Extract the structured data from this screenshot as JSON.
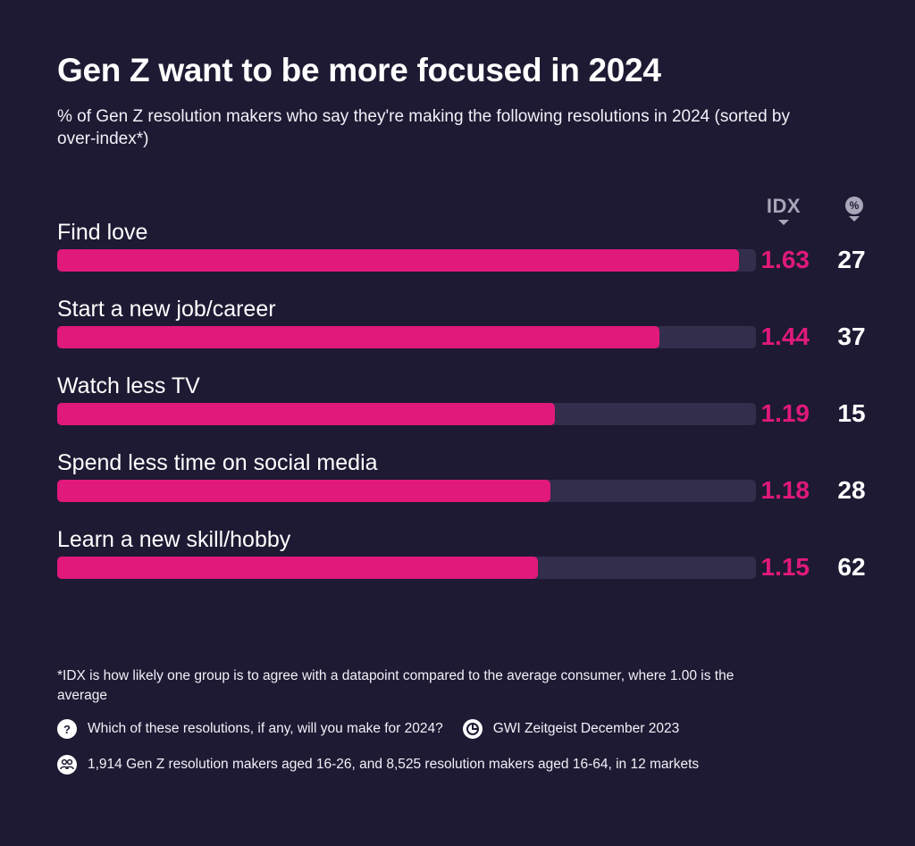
{
  "title": "Gen Z want to be more focused in 2024",
  "subtitle": "% of Gen Z resolution makers who say they're making the following resolutions in 2024 (sorted by over-index*)",
  "columns": {
    "idx": "IDX",
    "pct_icon": "%"
  },
  "colors": {
    "background": "#1e1a33",
    "bar": "#e0197b",
    "track": "#322e4c",
    "muted": "#a8a6b8"
  },
  "chart_data": {
    "type": "bar",
    "orientation": "horizontal",
    "categories": [
      "Find love",
      "Start a new job/career",
      "Watch less TV",
      "Spend less time on social media",
      "Learn a new skill/hobby"
    ],
    "series": [
      {
        "name": "IDX",
        "values": [
          1.63,
          1.44,
          1.19,
          1.18,
          1.15
        ],
        "labels": [
          "1.63",
          "1.44",
          "1.19",
          "1.18",
          "1.15"
        ]
      },
      {
        "name": "%",
        "values": [
          27,
          37,
          15,
          28,
          62
        ],
        "labels": [
          "27",
          "37",
          "15",
          "28",
          "62"
        ]
      }
    ],
    "xlim": [
      0,
      1.65
    ]
  },
  "footer": {
    "note": "*IDX is how likely one group is to agree with a datapoint compared to the average consumer, where 1.00 is the average",
    "question_icon": "?",
    "question": "Which of these resolutions, if any, will you make for 2024?",
    "source_icon": "gwi-logo-icon",
    "source": "GWI Zeitgeist December 2023",
    "sample_icon": "people-icon",
    "sample": "1,914 Gen Z resolution makers aged 16-26, and 8,525 resolution makers aged 16-64, in 12 markets"
  }
}
